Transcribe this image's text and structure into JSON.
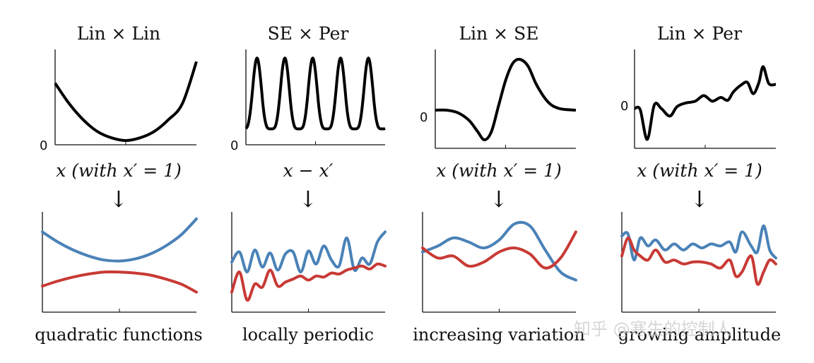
{
  "watermark": "知乎 @寒生的控制人",
  "chart_data": [
    {
      "title": "Lin × Lin",
      "xlabel": "x (with x′ = 1)",
      "arrow": "↓",
      "caption": "quadratic functions",
      "kernel": {
        "type": "line",
        "ytick": "0",
        "x": [
          -1.0,
          -0.8,
          -0.6,
          -0.4,
          -0.2,
          0.0,
          0.2,
          0.4,
          0.6,
          0.8,
          1.0
        ],
        "y": [
          0.64,
          0.41,
          0.23,
          0.1,
          0.03,
          0.0,
          0.03,
          0.1,
          0.23,
          0.41,
          0.88
        ],
        "color": "#000000",
        "ylim": [
          0,
          1
        ]
      },
      "samples": {
        "type": "line",
        "ylim": [
          0,
          1
        ],
        "series": [
          {
            "color": "#4a82b7",
            "x": [
              0,
              0.1,
              0.2,
              0.3,
              0.4,
              0.5,
              0.6,
              0.7,
              0.8,
              0.9,
              1.0
            ],
            "y": [
              0.8,
              0.7,
              0.62,
              0.56,
              0.52,
              0.51,
              0.53,
              0.58,
              0.66,
              0.77,
              0.93
            ]
          },
          {
            "color": "#c83a35",
            "x": [
              0,
              0.1,
              0.2,
              0.3,
              0.4,
              0.5,
              0.6,
              0.7,
              0.8,
              0.9,
              1.0
            ],
            "y": [
              0.26,
              0.31,
              0.35,
              0.38,
              0.4,
              0.4,
              0.39,
              0.37,
              0.33,
              0.28,
              0.2
            ]
          }
        ]
      }
    },
    {
      "title": "SE × Per",
      "xlabel": "x − x′",
      "arrow": "↓",
      "caption": "locally periodic",
      "kernel": {
        "type": "line",
        "ytick": "0",
        "periodic": {
          "peaks": 5,
          "base": 0.13,
          "peak": 0.92
        },
        "color": "#000000",
        "ylim": [
          0,
          1
        ]
      },
      "samples": {
        "type": "line",
        "ylim": [
          0,
          1
        ],
        "series": [
          {
            "color": "#4a82b7",
            "x": [
              0,
              0.05,
              0.1,
              0.15,
              0.2,
              0.25,
              0.3,
              0.35,
              0.4,
              0.45,
              0.5,
              0.55,
              0.6,
              0.65,
              0.7,
              0.75,
              0.8,
              0.85,
              0.9,
              0.95,
              1.0
            ],
            "y": [
              0.5,
              0.6,
              0.4,
              0.62,
              0.45,
              0.59,
              0.42,
              0.58,
              0.6,
              0.4,
              0.61,
              0.48,
              0.66,
              0.52,
              0.46,
              0.74,
              0.42,
              0.54,
              0.48,
              0.7,
              0.8
            ]
          },
          {
            "color": "#c83a35",
            "x": [
              0,
              0.05,
              0.1,
              0.15,
              0.2,
              0.25,
              0.3,
              0.35,
              0.4,
              0.45,
              0.5,
              0.55,
              0.6,
              0.65,
              0.7,
              0.75,
              0.8,
              0.85,
              0.9,
              0.95,
              1.0
            ],
            "y": [
              0.2,
              0.4,
              0.12,
              0.28,
              0.25,
              0.42,
              0.26,
              0.3,
              0.33,
              0.36,
              0.32,
              0.36,
              0.35,
              0.39,
              0.38,
              0.42,
              0.44,
              0.46,
              0.43,
              0.48,
              0.46
            ]
          }
        ]
      }
    },
    {
      "title": "Lin × SE",
      "xlabel": "x (with x′ = 1)",
      "arrow": "↓",
      "caption": "increasing variation",
      "kernel": {
        "type": "line",
        "ytick": "0",
        "x": [
          0,
          0.08,
          0.16,
          0.24,
          0.3,
          0.35,
          0.4,
          0.45,
          0.5,
          0.55,
          0.6,
          0.66,
          0.72,
          0.8,
          0.88,
          1.0
        ],
        "y": [
          0.3,
          0.3,
          0.27,
          0.18,
          0.05,
          -0.05,
          0.05,
          0.35,
          0.65,
          0.85,
          0.9,
          0.82,
          0.6,
          0.4,
          0.32,
          0.3
        ],
        "color": "#000000",
        "ylim": [
          -0.1,
          1
        ]
      },
      "samples": {
        "type": "line",
        "ylim": [
          0,
          1
        ],
        "series": [
          {
            "color": "#4a82b7",
            "x": [
              0,
              0.1,
              0.2,
              0.3,
              0.4,
              0.5,
              0.6,
              0.7,
              0.8,
              0.9,
              1.0
            ],
            "y": [
              0.6,
              0.66,
              0.74,
              0.7,
              0.64,
              0.72,
              0.88,
              0.86,
              0.62,
              0.4,
              0.32
            ]
          },
          {
            "color": "#c83a35",
            "x": [
              0,
              0.1,
              0.2,
              0.3,
              0.4,
              0.5,
              0.6,
              0.7,
              0.8,
              0.9,
              1.0
            ],
            "y": [
              0.64,
              0.54,
              0.56,
              0.46,
              0.5,
              0.6,
              0.64,
              0.58,
              0.44,
              0.54,
              0.8
            ]
          }
        ]
      }
    },
    {
      "title": "Lin × Per",
      "xlabel": "x (with x′ = 1)",
      "arrow": "↓",
      "caption": "growing amplitude",
      "kernel": {
        "type": "line",
        "ytick": "0",
        "x": [
          0,
          0.04,
          0.09,
          0.14,
          0.19,
          0.25,
          0.3,
          0.36,
          0.43,
          0.49,
          0.55,
          0.61,
          0.66,
          0.7,
          0.76,
          0.8,
          0.84,
          0.88,
          0.91,
          0.95,
          1.0
        ],
        "y": [
          0.38,
          0.37,
          0.05,
          0.42,
          0.38,
          0.3,
          0.4,
          0.44,
          0.46,
          0.52,
          0.46,
          0.5,
          0.47,
          0.56,
          0.64,
          0.66,
          0.54,
          0.66,
          0.83,
          0.65,
          0.64
        ],
        "color": "#000000",
        "ylim": [
          0,
          1
        ]
      },
      "samples": {
        "type": "line",
        "ylim": [
          0,
          1
        ],
        "series": [
          {
            "color": "#4a82b7",
            "x": [
              0,
              0.04,
              0.08,
              0.12,
              0.17,
              0.22,
              0.28,
              0.34,
              0.4,
              0.46,
              0.52,
              0.58,
              0.64,
              0.7,
              0.74,
              0.78,
              0.84,
              0.88,
              0.92,
              0.96,
              1.0
            ],
            "y": [
              0.76,
              0.78,
              0.52,
              0.74,
              0.66,
              0.72,
              0.62,
              0.68,
              0.62,
              0.68,
              0.64,
              0.68,
              0.66,
              0.7,
              0.6,
              0.8,
              0.66,
              0.6,
              0.86,
              0.62,
              0.54
            ]
          },
          {
            "color": "#c83a35",
            "x": [
              0,
              0.04,
              0.08,
              0.12,
              0.17,
              0.22,
              0.28,
              0.34,
              0.4,
              0.46,
              0.52,
              0.58,
              0.64,
              0.7,
              0.74,
              0.78,
              0.84,
              0.88,
              0.92,
              0.96,
              1.0
            ],
            "y": [
              0.56,
              0.74,
              0.62,
              0.56,
              0.52,
              0.62,
              0.5,
              0.52,
              0.48,
              0.5,
              0.5,
              0.48,
              0.44,
              0.52,
              0.36,
              0.4,
              0.56,
              0.28,
              0.4,
              0.52,
              0.48
            ]
          }
        ]
      }
    }
  ]
}
